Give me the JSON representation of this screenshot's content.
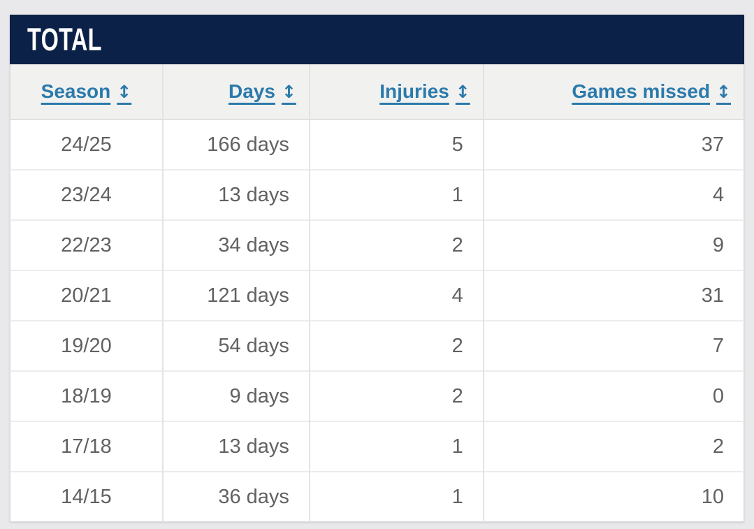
{
  "title": "TOTAL",
  "table": {
    "columns": [
      {
        "label": "Season",
        "sort_icon": "↕"
      },
      {
        "label": "Days",
        "sort_icon": "↕"
      },
      {
        "label": "Injuries",
        "sort_icon": "↕"
      },
      {
        "label": "Games missed",
        "sort_icon": "↕"
      }
    ],
    "rows": [
      {
        "season": "24/25",
        "days": "166 days",
        "injuries": "5",
        "games_missed": "37"
      },
      {
        "season": "23/24",
        "days": "13 days",
        "injuries": "1",
        "games_missed": "4"
      },
      {
        "season": "22/23",
        "days": "34 days",
        "injuries": "2",
        "games_missed": "9"
      },
      {
        "season": "20/21",
        "days": "121 days",
        "injuries": "4",
        "games_missed": "31"
      },
      {
        "season": "19/20",
        "days": "54 days",
        "injuries": "2",
        "games_missed": "7"
      },
      {
        "season": "18/19",
        "days": "9 days",
        "injuries": "2",
        "games_missed": "0"
      },
      {
        "season": "17/18",
        "days": "13 days",
        "injuries": "1",
        "games_missed": "2"
      },
      {
        "season": "14/15",
        "days": "36 days",
        "injuries": "1",
        "games_missed": "10"
      }
    ]
  },
  "colors": {
    "title_bar_bg": "#0b2147",
    "title_text": "#ffffff",
    "header_row_bg": "#f1f1f0",
    "header_link": "#2b7aab",
    "cell_text": "#616161",
    "page_bg": "#e9e9eb"
  }
}
